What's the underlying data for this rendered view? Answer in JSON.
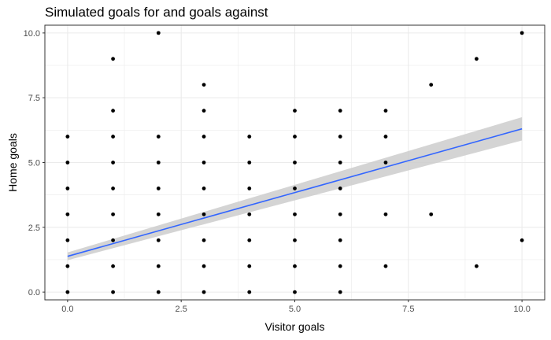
{
  "chart_data": {
    "type": "scatter",
    "title": "Simulated goals for and goals against",
    "xlabel": "Visitor goals",
    "ylabel": "Home goals",
    "xlim": [
      -0.5,
      10.5
    ],
    "ylim": [
      -0.3,
      10.3
    ],
    "x_ticks": [
      0,
      2.5,
      5,
      7.5,
      10
    ],
    "x_tick_labels": [
      "0.0",
      "2.5",
      "5.0",
      "7.5",
      "10.0"
    ],
    "y_ticks": [
      0,
      2.5,
      5,
      7.5,
      10
    ],
    "y_tick_labels": [
      "0.0",
      "2.5",
      "5.0",
      "7.5",
      "10.0"
    ],
    "grid": true,
    "points": [
      {
        "x": 0,
        "y": 0
      },
      {
        "x": 0,
        "y": 1
      },
      {
        "x": 0,
        "y": 2
      },
      {
        "x": 0,
        "y": 3
      },
      {
        "x": 0,
        "y": 4
      },
      {
        "x": 0,
        "y": 5
      },
      {
        "x": 0,
        "y": 6
      },
      {
        "x": 1,
        "y": 0
      },
      {
        "x": 1,
        "y": 1
      },
      {
        "x": 1,
        "y": 2
      },
      {
        "x": 1,
        "y": 3
      },
      {
        "x": 1,
        "y": 4
      },
      {
        "x": 1,
        "y": 5
      },
      {
        "x": 1,
        "y": 6
      },
      {
        "x": 1,
        "y": 7
      },
      {
        "x": 1,
        "y": 9
      },
      {
        "x": 2,
        "y": 0
      },
      {
        "x": 2,
        "y": 1
      },
      {
        "x": 2,
        "y": 2
      },
      {
        "x": 2,
        "y": 3
      },
      {
        "x": 2,
        "y": 4
      },
      {
        "x": 2,
        "y": 5
      },
      {
        "x": 2,
        "y": 6
      },
      {
        "x": 2,
        "y": 10
      },
      {
        "x": 3,
        "y": 0
      },
      {
        "x": 3,
        "y": 1
      },
      {
        "x": 3,
        "y": 2
      },
      {
        "x": 3,
        "y": 3
      },
      {
        "x": 3,
        "y": 4
      },
      {
        "x": 3,
        "y": 5
      },
      {
        "x": 3,
        "y": 6
      },
      {
        "x": 3,
        "y": 7
      },
      {
        "x": 3,
        "y": 8
      },
      {
        "x": 4,
        "y": 0
      },
      {
        "x": 4,
        "y": 1
      },
      {
        "x": 4,
        "y": 2
      },
      {
        "x": 4,
        "y": 3
      },
      {
        "x": 4,
        "y": 4
      },
      {
        "x": 4,
        "y": 5
      },
      {
        "x": 4,
        "y": 6
      },
      {
        "x": 5,
        "y": 0
      },
      {
        "x": 5,
        "y": 1
      },
      {
        "x": 5,
        "y": 2
      },
      {
        "x": 5,
        "y": 3
      },
      {
        "x": 5,
        "y": 4
      },
      {
        "x": 5,
        "y": 5
      },
      {
        "x": 5,
        "y": 6
      },
      {
        "x": 5,
        "y": 7
      },
      {
        "x": 6,
        "y": 0
      },
      {
        "x": 6,
        "y": 1
      },
      {
        "x": 6,
        "y": 2
      },
      {
        "x": 6,
        "y": 3
      },
      {
        "x": 6,
        "y": 4
      },
      {
        "x": 6,
        "y": 5
      },
      {
        "x": 6,
        "y": 6
      },
      {
        "x": 6,
        "y": 7
      },
      {
        "x": 7,
        "y": 1
      },
      {
        "x": 7,
        "y": 3
      },
      {
        "x": 7,
        "y": 5
      },
      {
        "x": 7,
        "y": 6
      },
      {
        "x": 7,
        "y": 7
      },
      {
        "x": 8,
        "y": 3
      },
      {
        "x": 8,
        "y": 8
      },
      {
        "x": 9,
        "y": 1
      },
      {
        "x": 9,
        "y": 9
      },
      {
        "x": 10,
        "y": 2
      },
      {
        "x": 10,
        "y": 10
      }
    ],
    "trend_line": {
      "method": "linear",
      "x": [
        0,
        10
      ],
      "y": [
        1.38,
        6.3
      ],
      "ci_halfwidth": [
        0.15,
        0.45
      ],
      "color": "#3366FF",
      "ribbon_color": "#cccccc"
    },
    "point_color": "#000000",
    "panel_background": "#ffffff",
    "grid_color": "#ebebeb",
    "border_color": "#333333"
  }
}
